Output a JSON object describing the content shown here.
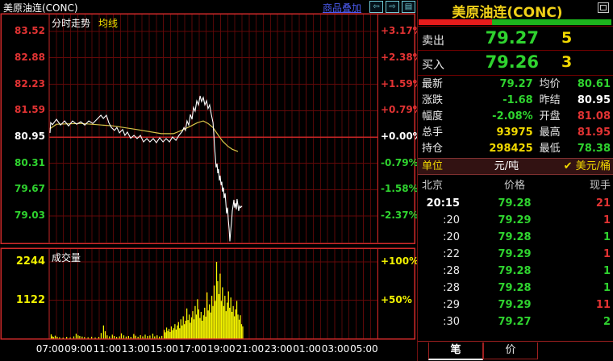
{
  "window": {
    "symbol_title": "美原油连(CONC)",
    "overlay_link": "商品叠加",
    "icons": {
      "prev": "⇦",
      "next": "⇨",
      "split": "▤",
      "window": "window-restore-icon"
    }
  },
  "chart": {
    "mode_label": "分时走势",
    "ma_label": "均线",
    "volume_label": "成交量",
    "left_axis": [
      {
        "text": "83.52",
        "color": "#e23333"
      },
      {
        "text": "82.88",
        "color": "#e23333"
      },
      {
        "text": "82.23",
        "color": "#e23333"
      },
      {
        "text": "81.59",
        "color": "#e23333"
      },
      {
        "text": "80.95",
        "color": "#ffffff"
      },
      {
        "text": "80.31",
        "color": "#2fd32f"
      },
      {
        "text": "79.67",
        "color": "#2fd32f"
      },
      {
        "text": "79.03",
        "color": "#2fd32f"
      }
    ],
    "right_axis": [
      {
        "text": "+3.17%",
        "color": "#e23333"
      },
      {
        "text": "+2.38%",
        "color": "#e23333"
      },
      {
        "text": "+1.59%",
        "color": "#e23333"
      },
      {
        "text": "+0.79%",
        "color": "#e23333"
      },
      {
        "text": "+0.00%",
        "color": "#ffffff"
      },
      {
        "text": "-0.79%",
        "color": "#2fd32f"
      },
      {
        "text": "-1.58%",
        "color": "#2fd32f"
      },
      {
        "text": "-2.37%",
        "color": "#2fd32f"
      }
    ],
    "volume_axis_left": [
      "2244",
      "1122"
    ],
    "volume_axis_right": [
      "+100%",
      "+50%"
    ],
    "time_labels": [
      "07:00",
      "09:00",
      "11:00",
      "13:00",
      "15:00",
      "17:00",
      "19:00",
      "21:00",
      "23:00",
      "01:00",
      "03:00",
      "05:00"
    ],
    "colors": {
      "frame_red": "#d22a2a",
      "grid_red": "#520707",
      "grid_h_red": "#640909",
      "center_line": "#c62626",
      "price_line": "#ffffff",
      "avg_line": "#d8c548",
      "volume_bar": "#f5f500",
      "link_blue": "#4b5bf0",
      "icon_teal": "#6fc8d4",
      "up_red": "#e23333",
      "down_green": "#2fd32f",
      "value_yellow": "#f0d800"
    }
  },
  "chart_data": {
    "type": "line",
    "title": "美原油连(CONC) 分时走势",
    "x_unit": "minutes since 07:00",
    "prev_close": 80.95,
    "y_axis_prices": [
      83.52,
      82.88,
      82.23,
      81.59,
      80.95,
      80.31,
      79.67,
      79.03
    ],
    "y_axis_pcts": [
      "+3.17%",
      "+2.38%",
      "+1.59%",
      "+0.79%",
      "+0.00%",
      "-0.79%",
      "-1.58%",
      "-2.37%"
    ],
    "volume_axis": [
      2244,
      1122
    ],
    "price_line": {
      "t": [
        0,
        3,
        10,
        27,
        44,
        61,
        78,
        95,
        112,
        129,
        146,
        163,
        180,
        197,
        214,
        224,
        237,
        247,
        258,
        271,
        281,
        292,
        305,
        315,
        325,
        339,
        353,
        366,
        380,
        393,
        407,
        420,
        434,
        447,
        461,
        475,
        488,
        502,
        515,
        529,
        542,
        556,
        563,
        569,
        576,
        583,
        590,
        597,
        603,
        610,
        617,
        624,
        631,
        637,
        644,
        651,
        658,
        664,
        671,
        678,
        685,
        688,
        691,
        695,
        698,
        702,
        705,
        708,
        712,
        715,
        719,
        722,
        725,
        729,
        732,
        736,
        739,
        742,
        746,
        749,
        753,
        756,
        759,
        763,
        766,
        770,
        773,
        776,
        780,
        783,
        786,
        790,
        793,
        797,
        800,
        807
      ],
      "p": [
        81.05,
        81.3,
        81.25,
        81.38,
        81.24,
        81.34,
        81.22,
        81.34,
        81.26,
        81.32,
        81.24,
        81.34,
        81.28,
        81.38,
        81.48,
        81.4,
        81.48,
        81.3,
        81.18,
        81.11,
        81.18,
        81.05,
        81.13,
        80.99,
        81.07,
        80.92,
        80.99,
        80.91,
        80.99,
        80.83,
        80.91,
        80.83,
        80.91,
        80.81,
        80.93,
        80.83,
        80.91,
        80.83,
        80.95,
        80.87,
        80.99,
        81.09,
        81.18,
        81.11,
        81.34,
        81.24,
        81.5,
        81.38,
        81.67,
        81.58,
        81.83,
        81.73,
        81.95,
        81.81,
        81.91,
        81.73,
        81.83,
        81.64,
        81.73,
        81.5,
        81.3,
        81.05,
        80.76,
        80.46,
        80.21,
        80.3,
        80.07,
        80.17,
        79.89,
        80.01,
        79.78,
        79.86,
        79.62,
        79.72,
        79.46,
        79.58,
        79.34,
        79.09,
        79.23,
        78.95,
        78.7,
        78.41,
        78.64,
        78.89,
        79.15,
        79.29,
        79.42,
        79.23,
        79.34,
        79.19,
        79.44,
        79.29,
        79.15,
        79.27,
        79.23,
        79.27
      ]
    },
    "avg_line": {
      "t": [
        0,
        27,
        130,
        264,
        366,
        468,
        519,
        553,
        586,
        620,
        644,
        664,
        685,
        705,
        725,
        746,
        766,
        790
      ],
      "p": [
        81.15,
        81.26,
        81.28,
        81.22,
        81.13,
        81.03,
        81.03,
        81.11,
        81.2,
        81.3,
        81.34,
        81.28,
        81.18,
        81.01,
        80.85,
        80.73,
        80.65,
        80.6
      ]
    },
    "volume_bars": {
      "t": [
        5,
        10,
        15,
        22,
        30,
        40,
        55,
        70,
        85,
        100,
        110,
        118,
        125,
        135,
        145,
        160,
        175,
        190,
        205,
        215,
        225,
        232,
        240,
        250,
        262,
        270,
        280,
        292,
        300,
        310,
        320,
        330,
        340,
        352,
        360,
        370,
        380,
        390,
        400,
        410,
        420,
        432,
        440,
        450,
        460,
        470,
        480,
        485,
        490,
        495,
        500,
        505,
        510,
        515,
        520,
        525,
        530,
        535,
        540,
        545,
        550,
        555,
        560,
        565,
        570,
        575,
        580,
        585,
        590,
        595,
        600,
        605,
        610,
        615,
        620,
        625,
        630,
        635,
        640,
        645,
        650,
        655,
        660,
        665,
        670,
        675,
        680,
        685,
        690,
        695,
        700,
        705,
        710,
        715,
        720,
        725,
        730,
        735,
        740,
        745,
        750,
        755,
        760,
        765,
        770,
        775,
        780,
        785,
        790,
        795,
        800,
        805,
        810
      ],
      "v": [
        120,
        60,
        40,
        80,
        50,
        35,
        25,
        45,
        30,
        60,
        140,
        90,
        70,
        55,
        40,
        35,
        50,
        30,
        45,
        160,
        380,
        210,
        90,
        60,
        110,
        70,
        45,
        60,
        150,
        90,
        55,
        70,
        45,
        130,
        80,
        50,
        95,
        60,
        110,
        70,
        85,
        140,
        60,
        90,
        55,
        75,
        250,
        180,
        320,
        220,
        280,
        190,
        350,
        240,
        300,
        420,
        260,
        380,
        480,
        300,
        560,
        380,
        650,
        420,
        520,
        880,
        540,
        700,
        460,
        620,
        800,
        560,
        950,
        700,
        1150,
        850,
        600,
        780,
        520,
        680,
        900,
        640,
        1350,
        820,
        1000,
        760,
        1250,
        950,
        1550,
        1100,
        2244,
        1680,
        1300,
        1900,
        1100,
        1500,
        950,
        1250,
        800,
        1050,
        1380,
        900,
        1200,
        780,
        950,
        650,
        850,
        1100,
        700,
        550,
        680,
        420,
        350
      ]
    }
  },
  "quote": {
    "title": "美原油连(CONC)",
    "strength_bar": {
      "red_pct": 38,
      "green_pct": 62
    },
    "ask": {
      "label": "卖出",
      "price": "79.27",
      "qty": "5"
    },
    "bid": {
      "label": "买入",
      "price": "79.26",
      "qty": "3"
    },
    "stats": [
      {
        "label": "最新",
        "value": "79.27",
        "color": "green"
      },
      {
        "label": "均价",
        "value": "80.61",
        "color": "green"
      },
      {
        "label": "涨跌",
        "value": "-1.68",
        "color": "green"
      },
      {
        "label": "昨结",
        "value": "80.95",
        "color": "white"
      },
      {
        "label": "幅度",
        "value": "-2.08%",
        "color": "green"
      },
      {
        "label": "开盘",
        "value": "81.08",
        "color": "red"
      },
      {
        "label": "总手",
        "value": "93975",
        "color": "yellow"
      },
      {
        "label": "最高",
        "value": "81.95",
        "color": "red"
      },
      {
        "label": "持仓",
        "value": "298425",
        "color": "yellow"
      },
      {
        "label": "最低",
        "value": "78.38",
        "color": "green"
      }
    ],
    "unit_row": {
      "label": "单位",
      "option1": "元/吨",
      "check": "✔",
      "option2": "美元/桶"
    },
    "tick_header": {
      "time": "北京",
      "price": "价格",
      "vol": "现手"
    },
    "ticks": [
      {
        "time": "20:15",
        "price": "79.28",
        "vol": "21",
        "vol_color": "red"
      },
      {
        "time": ":20",
        "price": "79.29",
        "vol": "1",
        "vol_color": "red"
      },
      {
        "time": ":20",
        "price": "79.28",
        "vol": "1",
        "vol_color": "green"
      },
      {
        "time": ":22",
        "price": "79.29",
        "vol": "1",
        "vol_color": "red"
      },
      {
        "time": ":28",
        "price": "79.28",
        "vol": "1",
        "vol_color": "green"
      },
      {
        "time": ":28",
        "price": "79.28",
        "vol": "1",
        "vol_color": "green"
      },
      {
        "time": ":29",
        "price": "79.29",
        "vol": "11",
        "vol_color": "red"
      },
      {
        "time": ":30",
        "price": "79.27",
        "vol": "2",
        "vol_color": "green"
      }
    ],
    "tabs": [
      "笔",
      "价"
    ]
  }
}
